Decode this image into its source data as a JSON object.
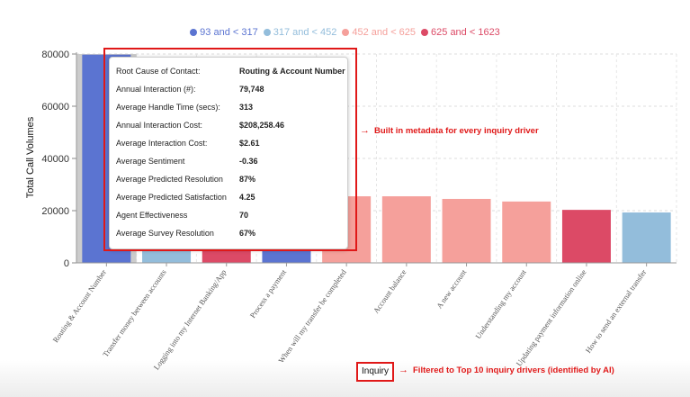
{
  "chart_data": {
    "type": "bar",
    "ylabel": "Total Call Volumes",
    "xlabel": "Inquiry",
    "ylim": [
      0,
      80000
    ],
    "yticks": [
      "0",
      "20000",
      "40000",
      "60000",
      "80000"
    ],
    "grid": true,
    "legend": [
      {
        "label": "93 and < 317",
        "color": "#5b74d1"
      },
      {
        "label": "317 and < 452",
        "color": "#93bddb"
      },
      {
        "label": "452 and < 625",
        "color": "#f5a09b"
      },
      {
        "label": "625 and < 1623",
        "color": "#dc4a66"
      }
    ],
    "categories": [
      "Routing & Account Number",
      "Transfer money between accounts",
      "Logging into my Internet Banking/App",
      "Process a payment",
      "When will my transfer be completed",
      "Account balance",
      "A new account",
      "Understanding my account",
      "Updating payment information online",
      "How to send an external transfer"
    ],
    "values": [
      79748,
      19500,
      19500,
      19500,
      25500,
      25500,
      24500,
      23500,
      20300,
      19300
    ],
    "bar_colors": [
      "#5b74d1",
      "#93bddb",
      "#dc4a66",
      "#5b74d1",
      "#f5a09b",
      "#f5a09b",
      "#f5a09b",
      "#f5a09b",
      "#dc4a66",
      "#93bddb"
    ],
    "highlight_index": 0
  },
  "tooltip": {
    "rows": [
      {
        "label": "Root Cause of Contact:",
        "value": "Routing & Account Number"
      },
      {
        "label": "Annual Interaction (#):",
        "value": "79,748"
      },
      {
        "label": "Average Handle Time (secs):",
        "value": "313"
      },
      {
        "label": "Annual Interaction Cost:",
        "value": "$208,258.46"
      },
      {
        "label": "Average Interaction Cost:",
        "value": "$2.61"
      },
      {
        "label": "Average Sentiment",
        "value": "-0.36"
      },
      {
        "label": "Average Predicted Resolution",
        "value": "87%"
      },
      {
        "label": "Average Predicted Satisfaction",
        "value": "4.25"
      },
      {
        "label": "Agent Effectiveness",
        "value": "70"
      },
      {
        "label": "Average Survey Resolution",
        "value": "67%"
      }
    ]
  },
  "annotations": {
    "metadata_note": "Built in metadata for every inquiry driver",
    "filter_note": "Filtered to Top 10 inquiry drivers (identified by AI)",
    "arrow": "→"
  }
}
